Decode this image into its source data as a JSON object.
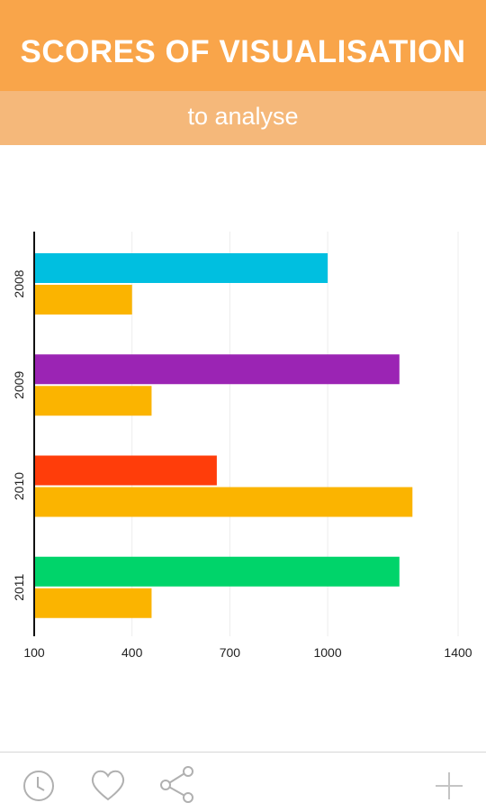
{
  "header": {
    "title": "SCORES OF VISUALISATION",
    "subtitle": "to analyse"
  },
  "colors": {
    "header_bg": "#f9a54a",
    "subheader_bg": "#f5b87a",
    "comparison_bar": "#fbb400",
    "bar_2008": "#00bfe0",
    "bar_2009": "#9b24b4",
    "bar_2010": "#ff3d0a",
    "bar_2011": "#00d46a"
  },
  "chart_data": {
    "type": "bar",
    "orientation": "horizontal",
    "categories": [
      "2008",
      "2009",
      "2010",
      "2011"
    ],
    "series": [
      {
        "values": [
          1000,
          1220,
          660,
          1220
        ],
        "colors": [
          "#00bfe0",
          "#9b24b4",
          "#ff3d0a",
          "#00d46a"
        ]
      },
      {
        "values": [
          400,
          460,
          1260,
          460
        ],
        "colors": [
          "#fbb400",
          "#fbb400",
          "#fbb400",
          "#fbb400"
        ]
      }
    ],
    "x_ticks": [
      "100",
      "400",
      "700",
      "1000",
      "1400"
    ],
    "xlim": [
      100,
      1400
    ],
    "grid": "vertical",
    "legend": "none"
  },
  "bottom_bar": {
    "icons": [
      "clock-icon",
      "heart-icon",
      "share-icon",
      "plus-icon"
    ]
  }
}
